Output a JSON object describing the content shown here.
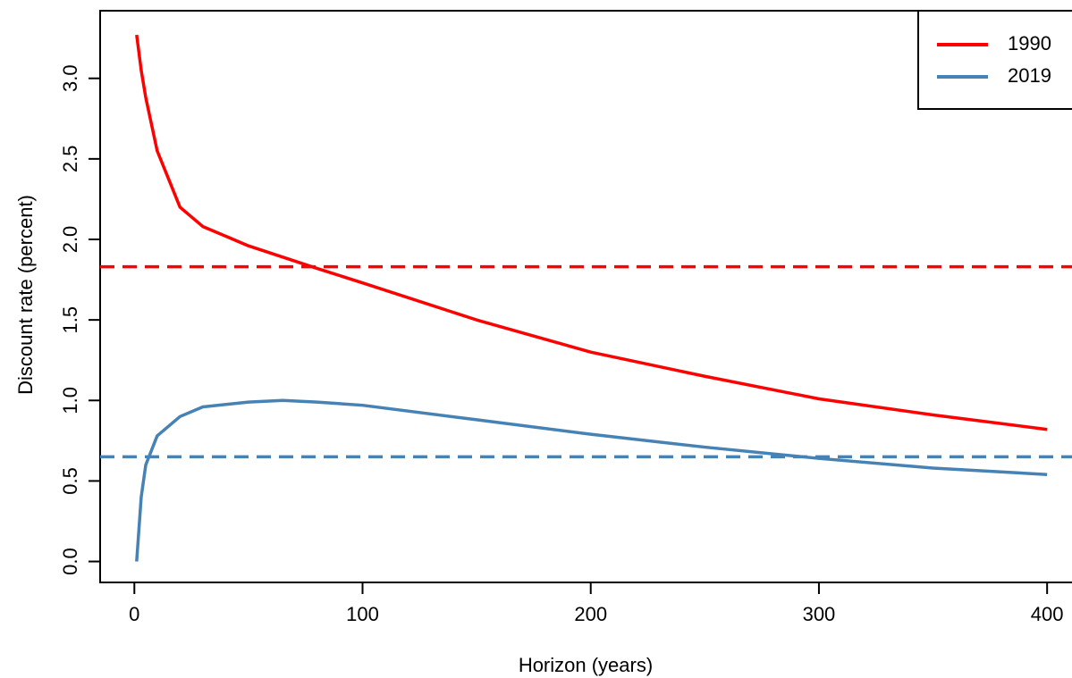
{
  "chart_data": {
    "type": "line",
    "x_label": "Horizon (years)",
    "y_label": "Discount rate (percent)",
    "x": [
      1,
      3,
      5,
      10,
      20,
      30,
      50,
      65,
      80,
      100,
      150,
      200,
      250,
      300,
      350,
      400
    ],
    "series": [
      {
        "name": "1990",
        "color": "#ff0000",
        "values": [
          3.27,
          3.05,
          2.88,
          2.55,
          2.2,
          2.08,
          1.96,
          1.89,
          1.82,
          1.73,
          1.5,
          1.3,
          1.15,
          1.01,
          0.91,
          0.82
        ]
      },
      {
        "name": "2019",
        "color": "#4682b4",
        "values": [
          0.0,
          0.4,
          0.6,
          0.78,
          0.9,
          0.96,
          0.99,
          1.0,
          0.99,
          0.97,
          0.88,
          0.79,
          0.71,
          0.64,
          0.58,
          0.54
        ]
      }
    ],
    "reference_lines": [
      {
        "value": 1.83,
        "color": "#ff0000"
      },
      {
        "value": 0.65,
        "color": "#4682b4"
      }
    ],
    "xlim": [
      -15,
      416
    ],
    "ylim": [
      -0.13,
      3.42
    ],
    "xticks": [
      0,
      100,
      200,
      300,
      400
    ],
    "yticks": [
      {
        "value": 0,
        "label": "0.0"
      },
      0.5,
      {
        "value": 1,
        "label": "1.0"
      },
      1.5,
      {
        "value": 2,
        "label": "2.0"
      },
      2.5,
      {
        "value": 3,
        "label": "3.0"
      }
    ],
    "legend": "top-right"
  }
}
